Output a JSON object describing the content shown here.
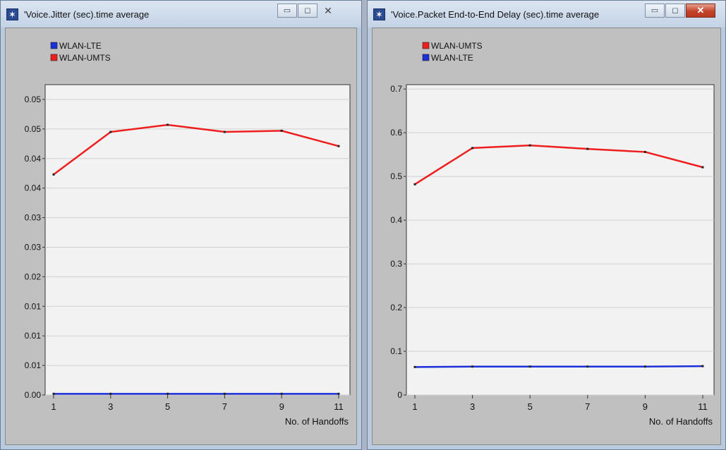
{
  "windows": [
    {
      "title": "'Voice.Jitter (sec).time average",
      "close_style": "plain",
      "chart_data": {
        "type": "line",
        "x": [
          1,
          3,
          5,
          7,
          9,
          11
        ],
        "xlim": [
          1,
          11
        ],
        "x_ticks": [
          "1",
          "3",
          "5",
          "7",
          "9",
          "11"
        ],
        "xlabel": "No. of Handoffs",
        "ylim": [
          0,
          0.0525
        ],
        "y_ticks": [
          0,
          0.005,
          0.01,
          0.015,
          0.02,
          0.025,
          0.03,
          0.035,
          0.04,
          0.045,
          0.05
        ],
        "y_tick_labels": [
          "0.00",
          "0.01",
          "0.01",
          "0.01",
          "0.02",
          "0.03",
          "0.03",
          "0.04",
          "0.04",
          "0.05",
          "0.05"
        ],
        "grid": true,
        "legend": [
          "WLAN-LTE",
          "WLAN-UMTS"
        ],
        "series": [
          {
            "name": "WLAN-LTE",
            "color": "#1d2fd8",
            "values": [
              0.0002,
              0.0002,
              0.0002,
              0.0002,
              0.0002,
              0.0002
            ]
          },
          {
            "name": "WLAN-UMTS",
            "color": "#ef1e1e",
            "values": [
              0.0373,
              0.0445,
              0.0457,
              0.0445,
              0.0447,
              0.0421
            ]
          }
        ]
      }
    },
    {
      "title": "'Voice.Packet End-to-End Delay (sec).time average",
      "close_style": "red",
      "chart_data": {
        "type": "line",
        "x": [
          1,
          3,
          5,
          7,
          9,
          11
        ],
        "xlim": [
          1,
          11
        ],
        "x_ticks": [
          "1",
          "3",
          "5",
          "7",
          "9",
          "11"
        ],
        "xlabel": "No. of Handoffs",
        "ylim": [
          0,
          0.71
        ],
        "y_ticks": [
          0,
          0.1,
          0.2,
          0.3,
          0.4,
          0.5,
          0.6,
          0.7
        ],
        "y_tick_labels": [
          "0",
          "0.1",
          "0.2",
          "0.3",
          "0.4",
          "0.5",
          "0.6",
          "0.7"
        ],
        "grid": true,
        "legend": [
          "WLAN-UMTS",
          "WLAN-LTE"
        ],
        "series": [
          {
            "name": "WLAN-UMTS",
            "color": "#ef1e1e",
            "values": [
              0.482,
              0.565,
              0.571,
              0.563,
              0.556,
              0.521
            ]
          },
          {
            "name": "WLAN-LTE",
            "color": "#1d2fd8",
            "values": [
              0.064,
              0.065,
              0.065,
              0.065,
              0.065,
              0.066
            ]
          }
        ]
      }
    }
  ]
}
